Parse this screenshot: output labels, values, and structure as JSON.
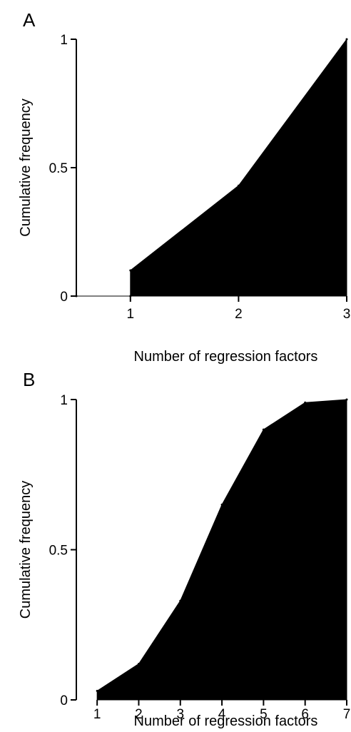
{
  "chart_data": [
    {
      "panel_label": "A",
      "type": "area",
      "x": [
        0.5,
        1,
        1,
        2,
        3
      ],
      "y": [
        0,
        0,
        0.1,
        0.43,
        1
      ],
      "xlabel": "Number of regression factors",
      "ylabel": "Cumulative frequency",
      "xlim": [
        0.5,
        3
      ],
      "ylim": [
        0,
        1
      ],
      "xticks": [
        1,
        2,
        3
      ],
      "yticks": [
        0,
        0.5,
        1
      ],
      "ytick_labels": [
        "0",
        "0.5",
        "1"
      ],
      "fill_color": "#000000",
      "grid": false
    },
    {
      "panel_label": "B",
      "type": "area",
      "x": [
        1,
        2,
        3,
        4,
        5,
        6,
        7
      ],
      "y": [
        0.03,
        0.12,
        0.33,
        0.65,
        0.9,
        0.99,
        1
      ],
      "xlabel": "Number of regression factors",
      "ylabel": "Cumulative frequency",
      "xlim": [
        0.5,
        7
      ],
      "ylim": [
        0,
        1
      ],
      "xticks": [
        1,
        2,
        3,
        4,
        5,
        6,
        7
      ],
      "yticks": [
        0,
        0.5,
        1
      ],
      "ytick_labels": [
        "0",
        "0.5",
        "1"
      ],
      "fill_color": "#000000",
      "grid": false
    }
  ]
}
